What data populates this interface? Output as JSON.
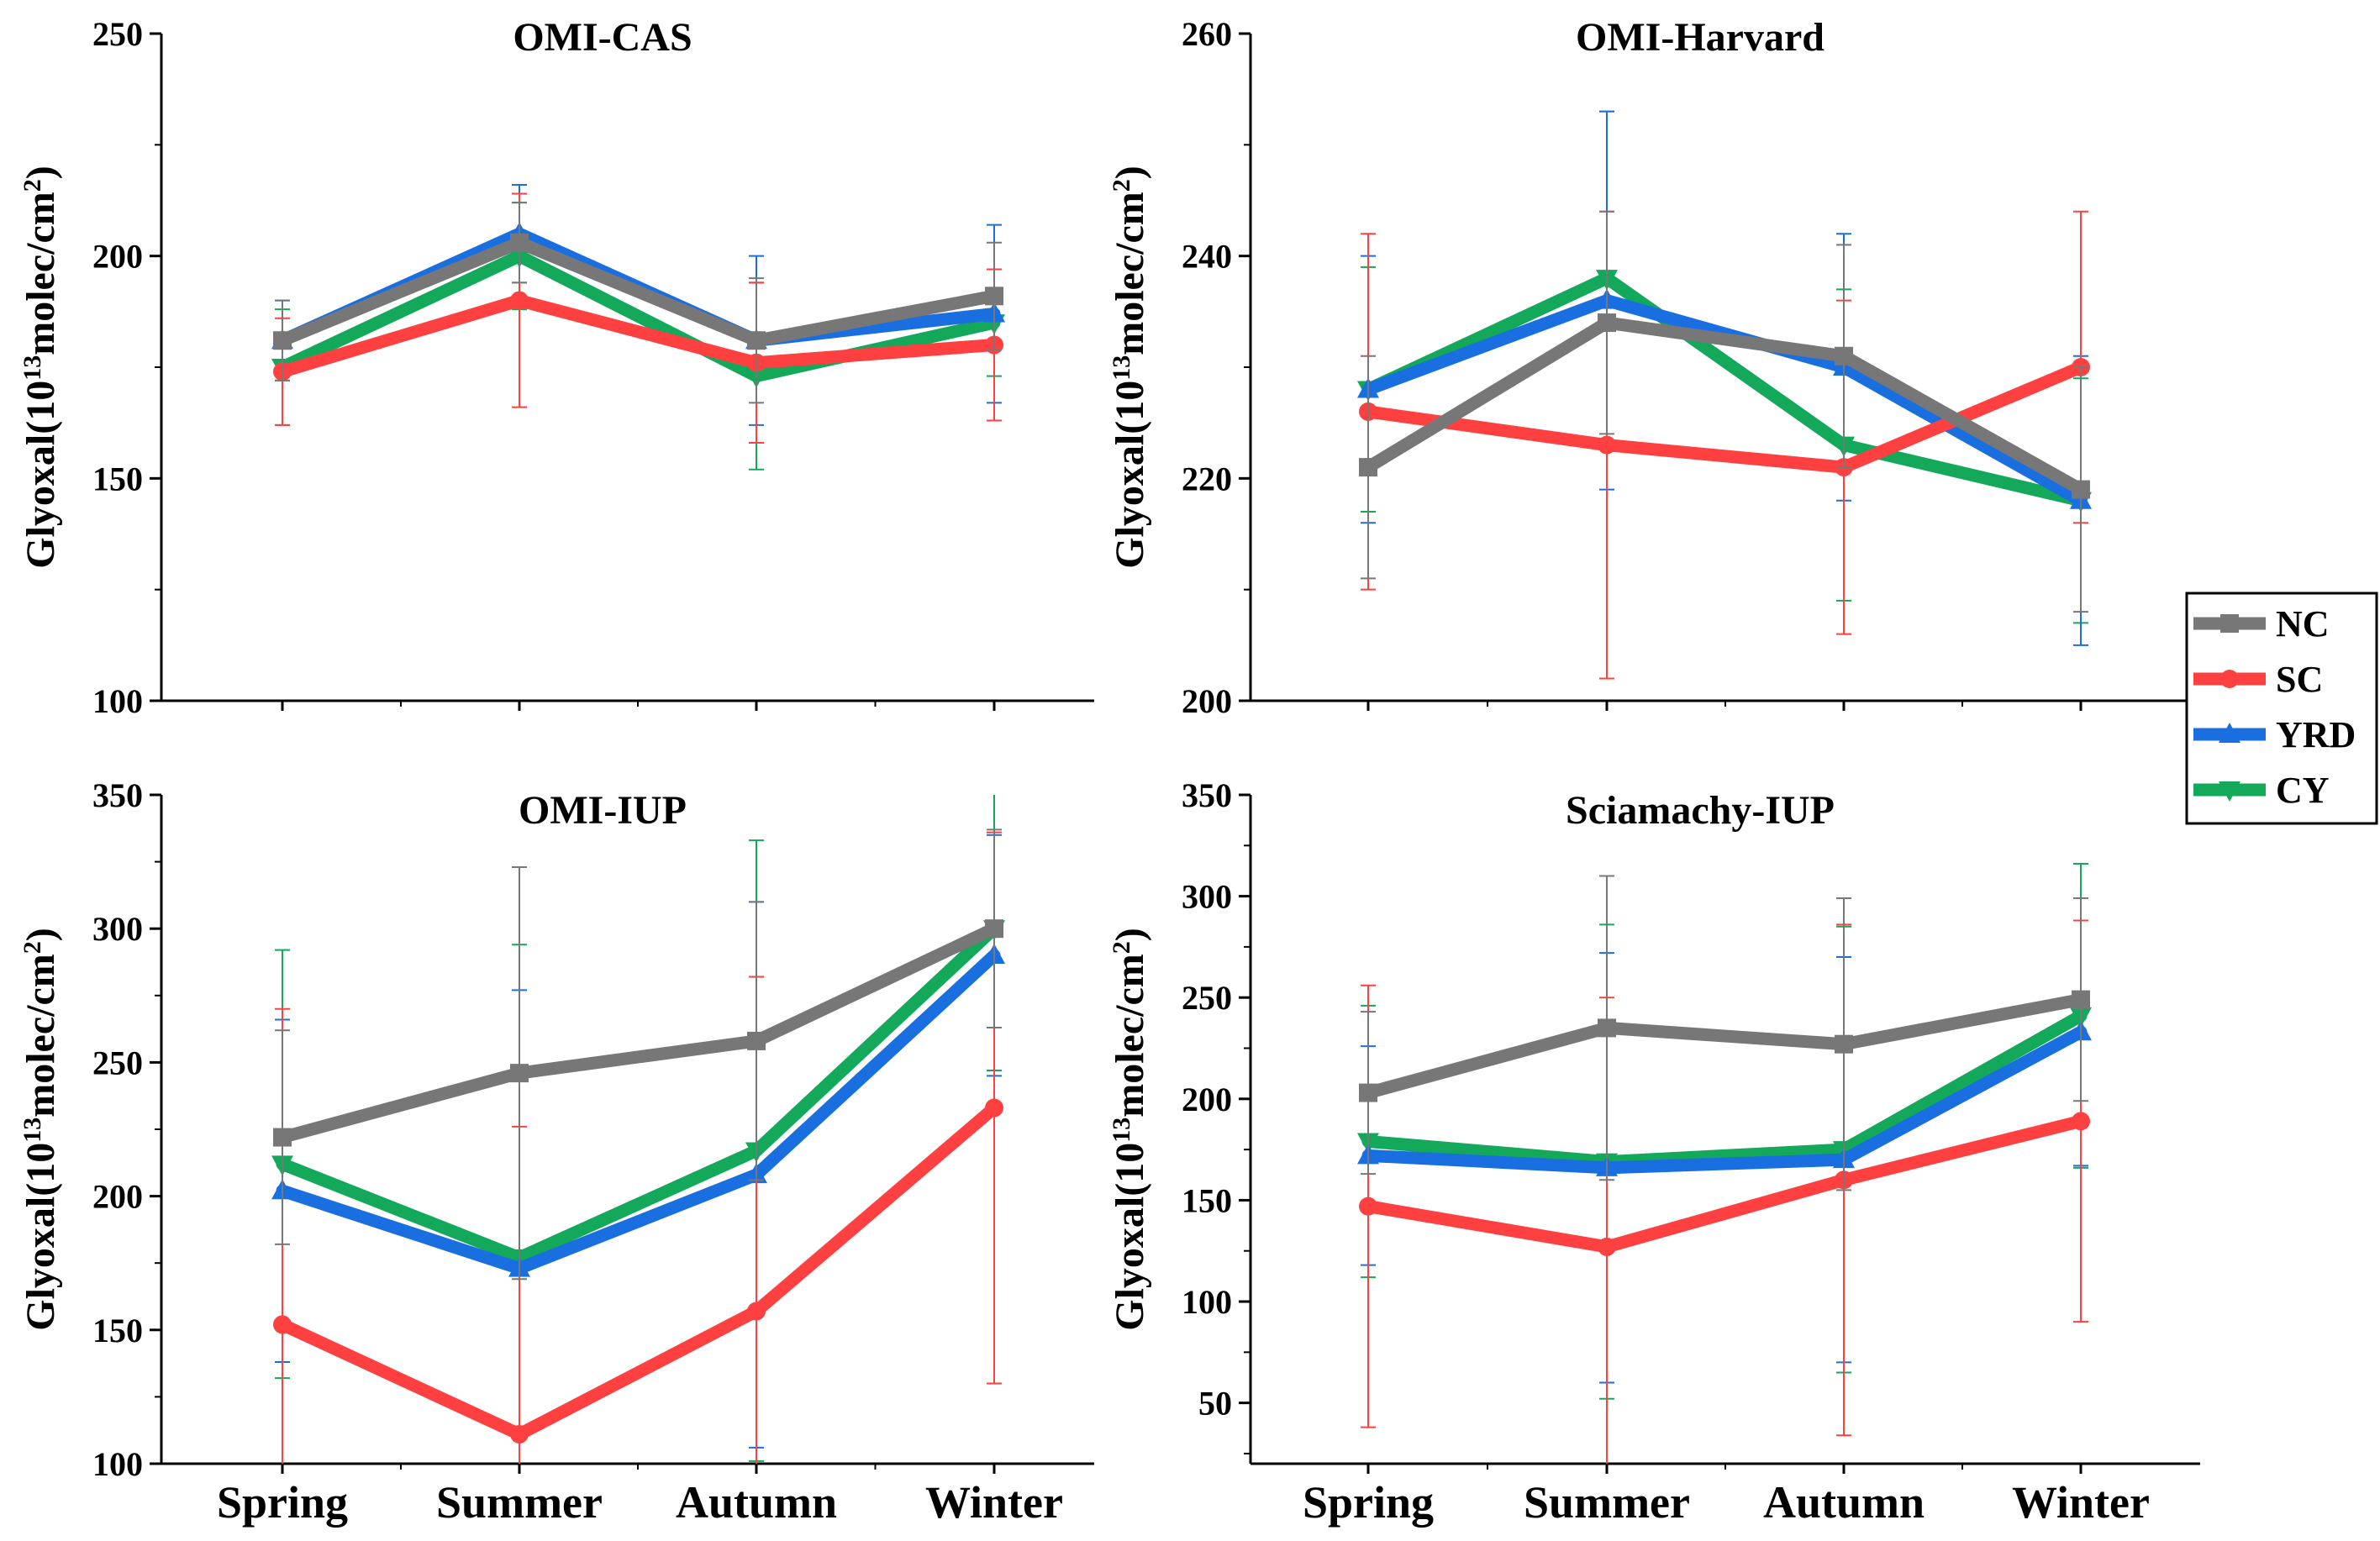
{
  "colors": {
    "NC": "#777777",
    "SC": "#ff4040",
    "YRD": "#1a6fe0",
    "CY": "#13a85a"
  },
  "legend": [
    {
      "key": "NC",
      "label": "NC"
    },
    {
      "key": "SC",
      "label": "SC"
    },
    {
      "key": "YRD",
      "label": "YRD"
    },
    {
      "key": "CY",
      "label": "CY"
    }
  ],
  "chart_data": [
    {
      "type": "line",
      "title": "OMI-CAS",
      "ylabel": {
        "main": "Glyoxal(10",
        "sup1": "13",
        "mid": "molec/cm",
        "sup2": "2",
        "end": ")"
      },
      "categories": [
        "Spring",
        "Summer",
        "Autumn",
        "Winter"
      ],
      "ylim": [
        100,
        250
      ],
      "yticks": [
        100,
        150,
        200,
        250
      ],
      "show_xlabels": false,
      "series": [
        {
          "name": "NC",
          "values": [
            181,
            203,
            181,
            191
          ],
          "err": [
            9,
            9,
            14,
            12
          ]
        },
        {
          "name": "SC",
          "values": [
            174,
            190,
            176,
            180
          ],
          "err": [
            12,
            24,
            18,
            17
          ]
        },
        {
          "name": "YRD",
          "values": [
            181,
            205,
            181,
            187
          ],
          "err": [
            9,
            11,
            19,
            20
          ]
        },
        {
          "name": "CY",
          "values": [
            175,
            200,
            173,
            185
          ],
          "err": [
            13,
            12,
            21,
            12
          ]
        }
      ]
    },
    {
      "type": "line",
      "title": "OMI-Harvard",
      "ylabel": {
        "main": "Glyoxal(10",
        "sup1": "13",
        "mid": "molec/cm",
        "sup2": "2",
        "end": ")"
      },
      "categories": [
        "Spring",
        "Summer",
        "Autumn",
        "Winter"
      ],
      "ylim": [
        200,
        260
      ],
      "yticks": [
        200,
        220,
        240,
        260
      ],
      "show_xlabels": false,
      "series": [
        {
          "name": "NC",
          "values": [
            221,
            234,
            231,
            219
          ],
          "err": [
            10,
            10,
            10,
            11
          ]
        },
        {
          "name": "SC",
          "values": [
            226,
            223,
            221,
            230
          ],
          "err": [
            16,
            21,
            15,
            14
          ]
        },
        {
          "name": "YRD",
          "values": [
            228,
            236,
            230,
            218
          ],
          "err": [
            12,
            17,
            12,
            13
          ]
        },
        {
          "name": "CY",
          "values": [
            228,
            238,
            223,
            218
          ],
          "err": [
            11,
            15,
            14,
            11
          ]
        }
      ]
    },
    {
      "type": "line",
      "title": "OMI-IUP",
      "ylabel": {
        "main": "Glyoxal(10",
        "sup1": "13",
        "mid": "molec/cm",
        "sup2": "2",
        "end": ")"
      },
      "categories": [
        "Spring",
        "Summer",
        "Autumn",
        "Winter"
      ],
      "ylim": [
        100,
        350
      ],
      "yticks": [
        100,
        150,
        200,
        250,
        300,
        350
      ],
      "show_xlabels": true,
      "series": [
        {
          "name": "NC",
          "values": [
            222,
            246,
            258,
            300
          ],
          "err": [
            40,
            77,
            52,
            37
          ]
        },
        {
          "name": "SC",
          "values": [
            152,
            111,
            157,
            233
          ],
          "err": [
            118,
            115,
            125,
            103
          ]
        },
        {
          "name": "YRD",
          "values": [
            202,
            173,
            208,
            290
          ],
          "err": [
            64,
            104,
            102,
            45
          ]
        },
        {
          "name": "CY",
          "values": [
            212,
            177,
            217,
            300
          ],
          "err": [
            80,
            117,
            116,
            53
          ]
        }
      ]
    },
    {
      "type": "line",
      "title": "Sciamachy-IUP",
      "ylabel": {
        "main": "Glyoxal(10",
        "sup1": "13",
        "mid": "molec/cm",
        "sup2": "2",
        "end": ")"
      },
      "categories": [
        "Spring",
        "Summer",
        "Autumn",
        "Winter"
      ],
      "ylim": [
        20,
        350
      ],
      "yticks": [
        50,
        100,
        150,
        200,
        250,
        300,
        350
      ],
      "show_xlabels": true,
      "series": [
        {
          "name": "NC",
          "values": [
            203,
            235,
            227,
            249
          ],
          "err": [
            40,
            75,
            72,
            50
          ]
        },
        {
          "name": "SC",
          "values": [
            147,
            127,
            160,
            189
          ],
          "err": [
            109,
            123,
            126,
            99
          ]
        },
        {
          "name": "YRD",
          "values": [
            172,
            166,
            170,
            233
          ],
          "err": [
            54,
            106,
            100,
            66
          ]
        },
        {
          "name": "CY",
          "values": [
            179,
            169,
            175,
            241
          ],
          "err": [
            67,
            117,
            110,
            75
          ]
        }
      ]
    }
  ]
}
